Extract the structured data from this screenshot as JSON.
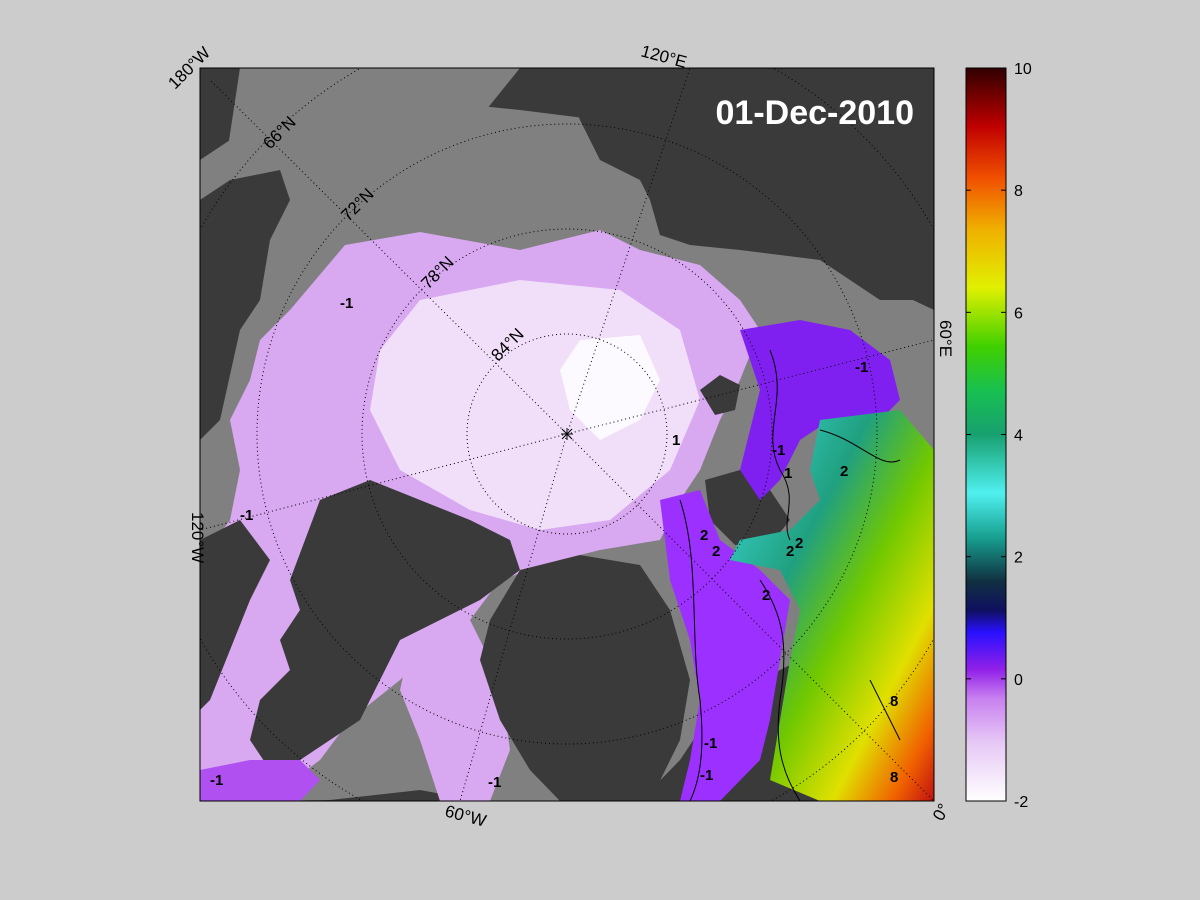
{
  "date": "01-Dec-2010",
  "graticule_labels": {
    "lon_180w": "180°W",
    "lon_120e": "120°E",
    "lon_60e": "60°E",
    "lon_120w": "120°W",
    "lon_60w": "60°W",
    "lon_0": "0°",
    "lat_66n": "66°N",
    "lat_72n": "72°N",
    "lat_78n": "78°N",
    "lat_84n": "84°N"
  },
  "colorbar": {
    "min": -2,
    "max": 10,
    "ticks": [
      "10",
      "8",
      "6",
      "4",
      "2",
      "0",
      "-2"
    ],
    "colors": [
      "#ffffff",
      "#e6c8f5",
      "#c880f0",
      "#9020e8",
      "#2810ff",
      "#101060",
      "#103040",
      "#18a090",
      "#50f0f0",
      "#18c050",
      "#40d000",
      "#e0f000",
      "#f0b000",
      "#f05000",
      "#c00000",
      "#300000"
    ]
  },
  "contour_labels": [
    "-1",
    "-1",
    "-1",
    "-1",
    "-1",
    "1",
    "1",
    "-1",
    "2",
    "2",
    "2",
    "2",
    "2",
    "2",
    "8",
    "8",
    "-1",
    "-1"
  ],
  "colors": {
    "background": "#cccccc",
    "land": "#3a3a3a",
    "shelf": "#808080",
    "ice_light": "#f4e4fb",
    "ice": "#d8a8f0",
    "cold_water": "#9b30ff"
  }
}
